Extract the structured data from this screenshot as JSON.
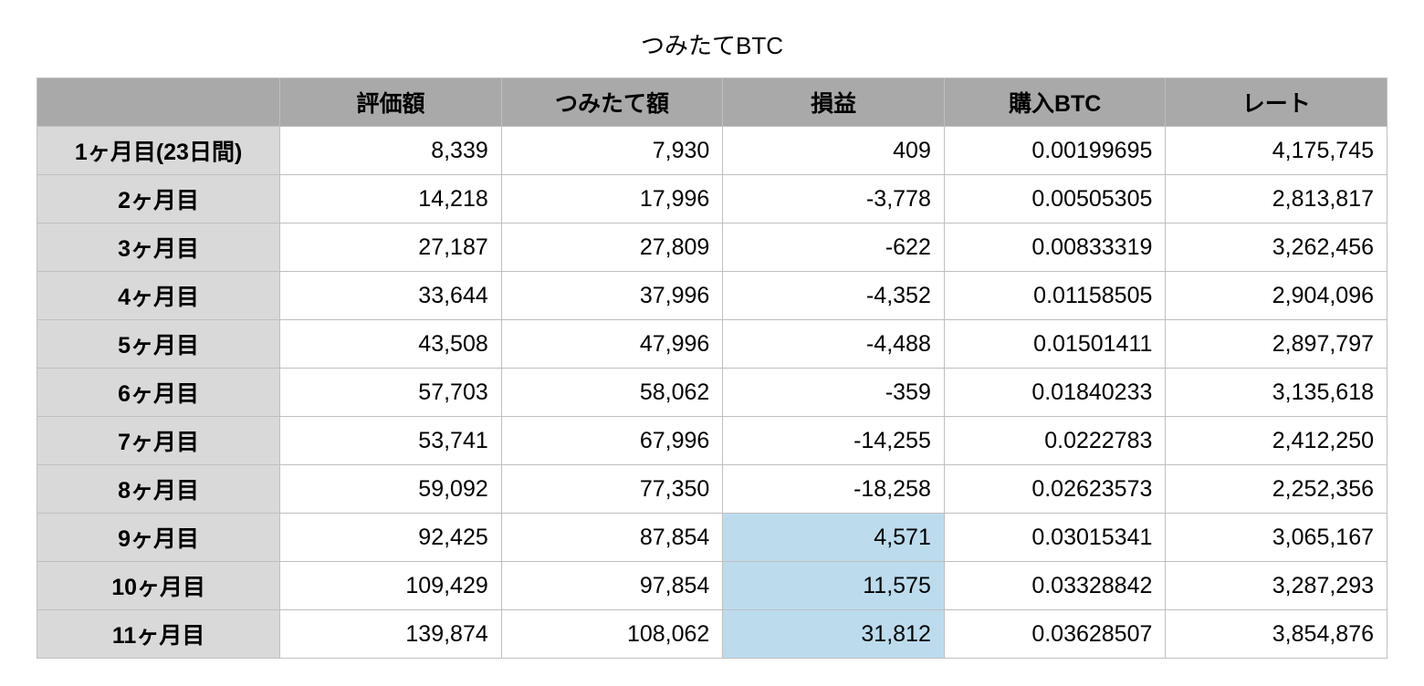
{
  "title": "つみたてBTC",
  "colors": {
    "header_bg": "#a9a9a9",
    "rowheader_bg": "#d9d9d9",
    "cell_bg": "#ffffff",
    "highlight_bg": "#bcdcee",
    "border": "#bfbfbf",
    "text": "#000000",
    "page_bg": "#ffffff"
  },
  "table": {
    "columns": [
      "",
      "評価額",
      "つみたて額",
      "損益",
      "購入BTC",
      "レート"
    ],
    "column_align": [
      "center",
      "right",
      "right",
      "right",
      "right",
      "right"
    ],
    "font_size_pt": 19,
    "header_font_weight": 700,
    "rowheader_font_weight": 700,
    "cell_font_weight": 400,
    "rows": [
      {
        "label": "1ヶ月目(23日間)",
        "valuation": "8,339",
        "deposit": "7,930",
        "pl": "409",
        "pl_highlight": false,
        "btc": "0.00199695",
        "rate": "4,175,745"
      },
      {
        "label": "2ヶ月目",
        "valuation": "14,218",
        "deposit": "17,996",
        "pl": "-3,778",
        "pl_highlight": false,
        "btc": "0.00505305",
        "rate": "2,813,817"
      },
      {
        "label": "3ヶ月目",
        "valuation": "27,187",
        "deposit": "27,809",
        "pl": "-622",
        "pl_highlight": false,
        "btc": "0.00833319",
        "rate": "3,262,456"
      },
      {
        "label": "4ヶ月目",
        "valuation": "33,644",
        "deposit": "37,996",
        "pl": "-4,352",
        "pl_highlight": false,
        "btc": "0.01158505",
        "rate": "2,904,096"
      },
      {
        "label": "5ヶ月目",
        "valuation": "43,508",
        "deposit": "47,996",
        "pl": "-4,488",
        "pl_highlight": false,
        "btc": "0.01501411",
        "rate": "2,897,797"
      },
      {
        "label": "6ヶ月目",
        "valuation": "57,703",
        "deposit": "58,062",
        "pl": "-359",
        "pl_highlight": false,
        "btc": "0.01840233",
        "rate": "3,135,618"
      },
      {
        "label": "7ヶ月目",
        "valuation": "53,741",
        "deposit": "67,996",
        "pl": "-14,255",
        "pl_highlight": false,
        "btc": "0.0222783",
        "rate": "2,412,250"
      },
      {
        "label": "8ヶ月目",
        "valuation": "59,092",
        "deposit": "77,350",
        "pl": "-18,258",
        "pl_highlight": false,
        "btc": "0.02623573",
        "rate": "2,252,356"
      },
      {
        "label": "9ヶ月目",
        "valuation": "92,425",
        "deposit": "87,854",
        "pl": "4,571",
        "pl_highlight": true,
        "btc": "0.03015341",
        "rate": "3,065,167"
      },
      {
        "label": "10ヶ月目",
        "valuation": "109,429",
        "deposit": "97,854",
        "pl": "11,575",
        "pl_highlight": true,
        "btc": "0.03328842",
        "rate": "3,287,293"
      },
      {
        "label": "11ヶ月目",
        "valuation": "139,874",
        "deposit": "108,062",
        "pl": "31,812",
        "pl_highlight": true,
        "btc": "0.03628507",
        "rate": "3,854,876"
      }
    ]
  }
}
